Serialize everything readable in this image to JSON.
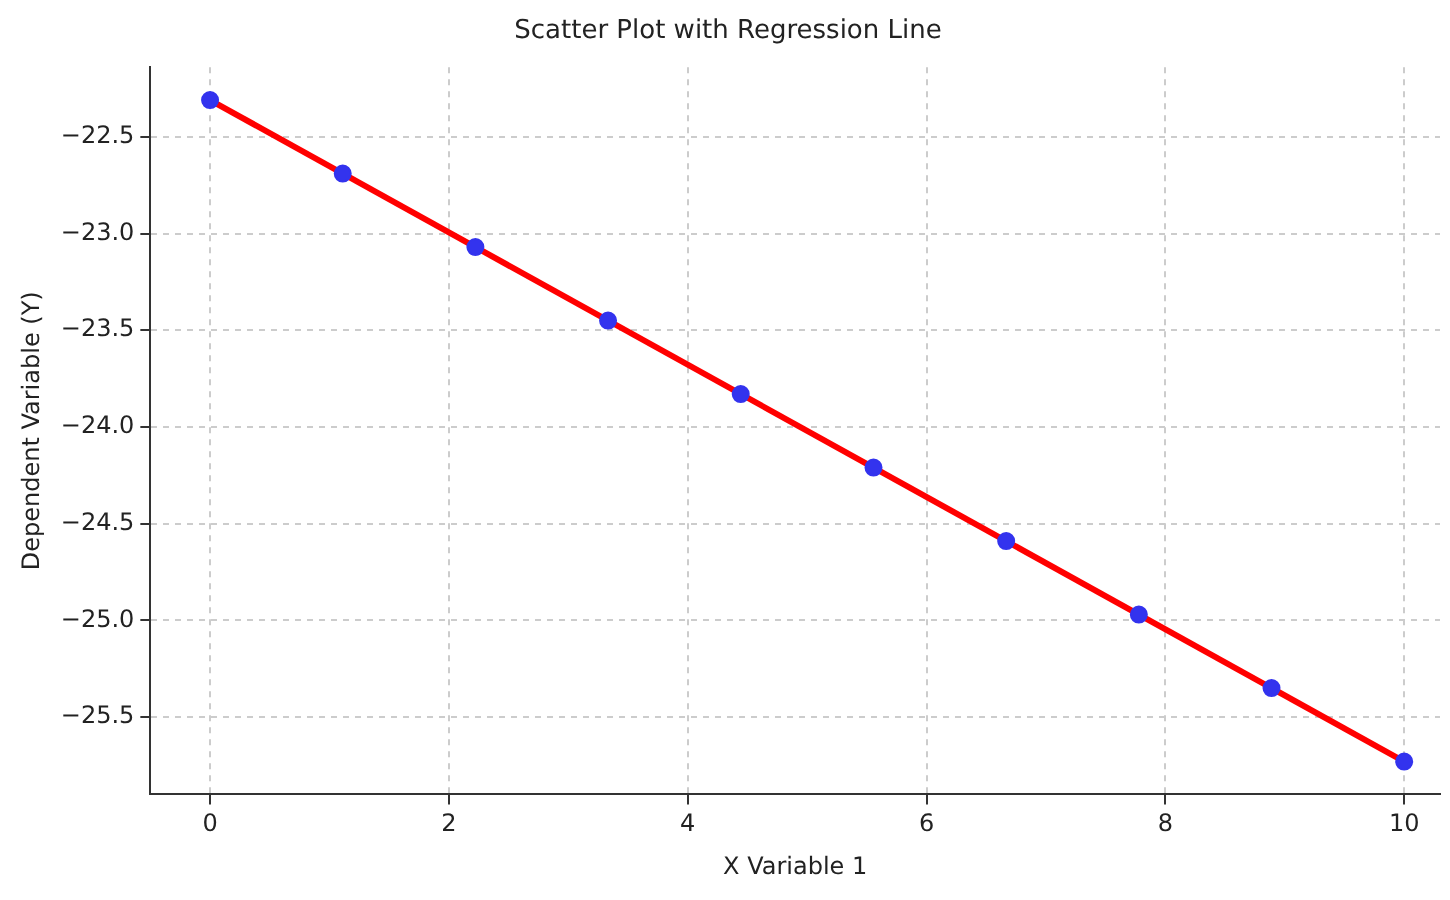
{
  "chart_data": {
    "type": "scatter",
    "title": "Scatter Plot with Regression Line",
    "xlabel": "X Variable 1",
    "ylabel": "Dependent Variable (Y)",
    "x": [
      0,
      1.111,
      2.222,
      3.333,
      4.444,
      5.556,
      6.667,
      7.778,
      8.889,
      10
    ],
    "series": [
      {
        "color": "#3333ee",
        "marker": "circle",
        "values": [
          -22.31,
          -22.69,
          -23.07,
          -23.45,
          -23.83,
          -24.21,
          -24.59,
          -24.97,
          -25.35,
          -25.73
        ]
      },
      {
        "type": "line",
        "color": "#ff0000",
        "x": [
          0,
          10
        ],
        "values": [
          -22.31,
          -25.73
        ]
      }
    ],
    "xlim": [
      -0.5,
      10.3
    ],
    "xticks": [
      0,
      2,
      4,
      6,
      8,
      10
    ],
    "ylim": [
      -25.9,
      -22.14
    ],
    "yticks": [
      {
        "value": -25.5,
        "label": "−25.5"
      },
      {
        "value": -25,
        "label": "−25.0"
      },
      {
        "value": -24.5,
        "label": "−24.5"
      },
      {
        "value": -24,
        "label": "−24.0"
      },
      {
        "value": -23.5,
        "label": "−23.5"
      },
      {
        "value": -23,
        "label": "−23.0"
      },
      {
        "value": -22.5,
        "label": "−22.5"
      }
    ],
    "grid": true,
    "legend": false,
    "line_style": "solid"
  }
}
